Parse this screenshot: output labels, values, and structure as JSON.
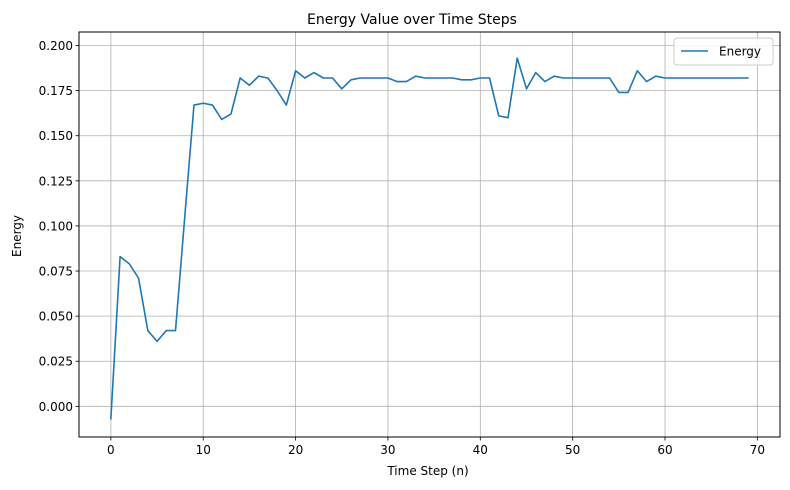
{
  "chart_data": {
    "type": "line",
    "title": "Energy Value over Time Steps",
    "xlabel": "Time Step (n)",
    "ylabel": "Energy",
    "xlim": [
      -3.45,
      72.45
    ],
    "ylim": [
      -0.017,
      0.2075
    ],
    "xticks": [
      0,
      10,
      20,
      30,
      40,
      50,
      60,
      70
    ],
    "xtick_labels": [
      "0",
      "10",
      "20",
      "30",
      "40",
      "50",
      "60",
      "70"
    ],
    "yticks": [
      0.0,
      0.025,
      0.05,
      0.075,
      0.1,
      0.125,
      0.15,
      0.175,
      0.2
    ],
    "ytick_labels": [
      "0.000",
      "0.025",
      "0.050",
      "0.075",
      "0.100",
      "0.125",
      "0.150",
      "0.175",
      "0.200"
    ],
    "grid": true,
    "legend": {
      "position": "top-right",
      "entries": [
        "Energy"
      ]
    },
    "series": [
      {
        "name": "Energy",
        "color": "#1f77b4",
        "x": [
          0,
          1,
          2,
          3,
          4,
          5,
          6,
          7,
          8,
          9,
          10,
          11,
          12,
          13,
          14,
          15,
          16,
          17,
          18,
          19,
          20,
          21,
          22,
          23,
          24,
          25,
          26,
          27,
          28,
          29,
          30,
          31,
          32,
          33,
          34,
          35,
          36,
          37,
          38,
          39,
          40,
          41,
          42,
          43,
          44,
          45,
          46,
          47,
          48,
          49,
          50,
          51,
          52,
          53,
          54,
          55,
          56,
          57,
          58,
          59,
          60,
          61,
          62,
          63,
          64,
          65,
          66,
          67,
          68,
          69
        ],
        "values": [
          -0.007,
          0.083,
          0.079,
          0.071,
          0.042,
          0.036,
          0.042,
          0.042,
          0.105,
          0.167,
          0.168,
          0.167,
          0.159,
          0.162,
          0.182,
          0.178,
          0.183,
          0.182,
          0.175,
          0.167,
          0.186,
          0.182,
          0.185,
          0.182,
          0.182,
          0.176,
          0.181,
          0.182,
          0.182,
          0.182,
          0.182,
          0.18,
          0.18,
          0.183,
          0.182,
          0.182,
          0.182,
          0.182,
          0.181,
          0.181,
          0.182,
          0.182,
          0.161,
          0.16,
          0.193,
          0.176,
          0.185,
          0.18,
          0.183,
          0.182,
          0.182,
          0.182,
          0.182,
          0.182,
          0.182,
          0.174,
          0.174,
          0.186,
          0.18,
          0.183,
          0.182,
          0.182,
          0.182,
          0.182,
          0.182,
          0.182,
          0.182,
          0.182,
          0.182,
          0.182
        ]
      }
    ]
  }
}
